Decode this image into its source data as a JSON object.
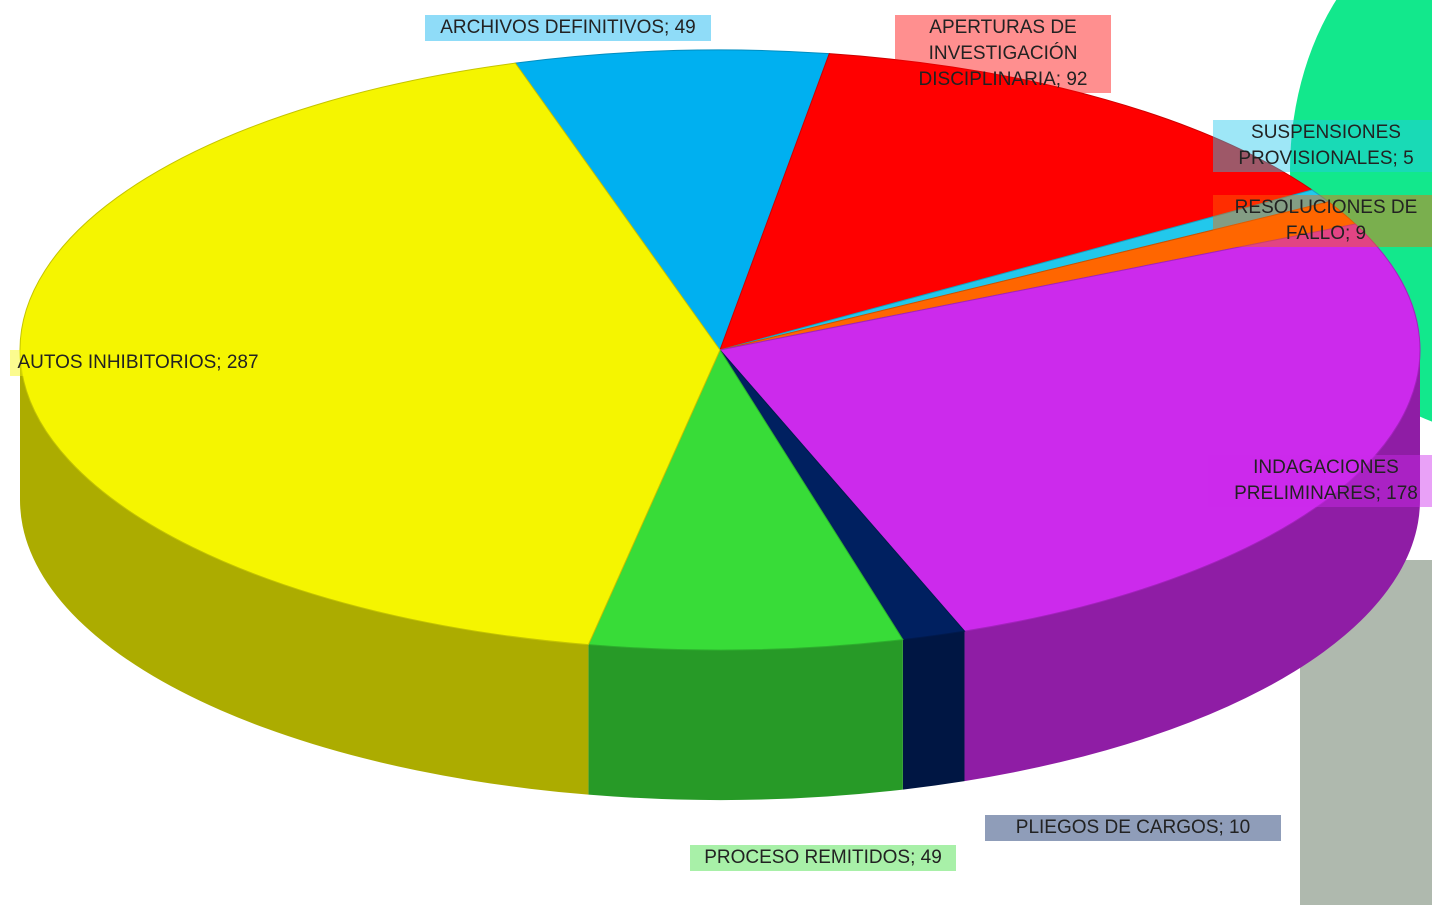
{
  "chart_data": {
    "type": "pie",
    "values": [
      49,
      92,
      5,
      9,
      178,
      10,
      49,
      287
    ],
    "value_labels": [
      "ARCHIVOS DEFINITIVOS; 49",
      "APERTURAS DE INVESTIGACIÓN DISCIPLINARIA; 92",
      "SUSPENSIONES PROVISIONALES; 5",
      "RESOLUCIONES DE FALLO; 9",
      "INDAGACIONES PRELIMINARES; 178",
      "PLIEGOS DE CARGOS; 10",
      "PROCESO REMITIDOS; 49",
      "AUTOS INHIBITORIOS; 287"
    ],
    "colors": [
      "#00b0f0",
      "#ff0000",
      "#22c8ec",
      "#ff6600",
      "#cc2aec",
      "#002060",
      "#38dc38",
      "#f5f500"
    ]
  }
}
